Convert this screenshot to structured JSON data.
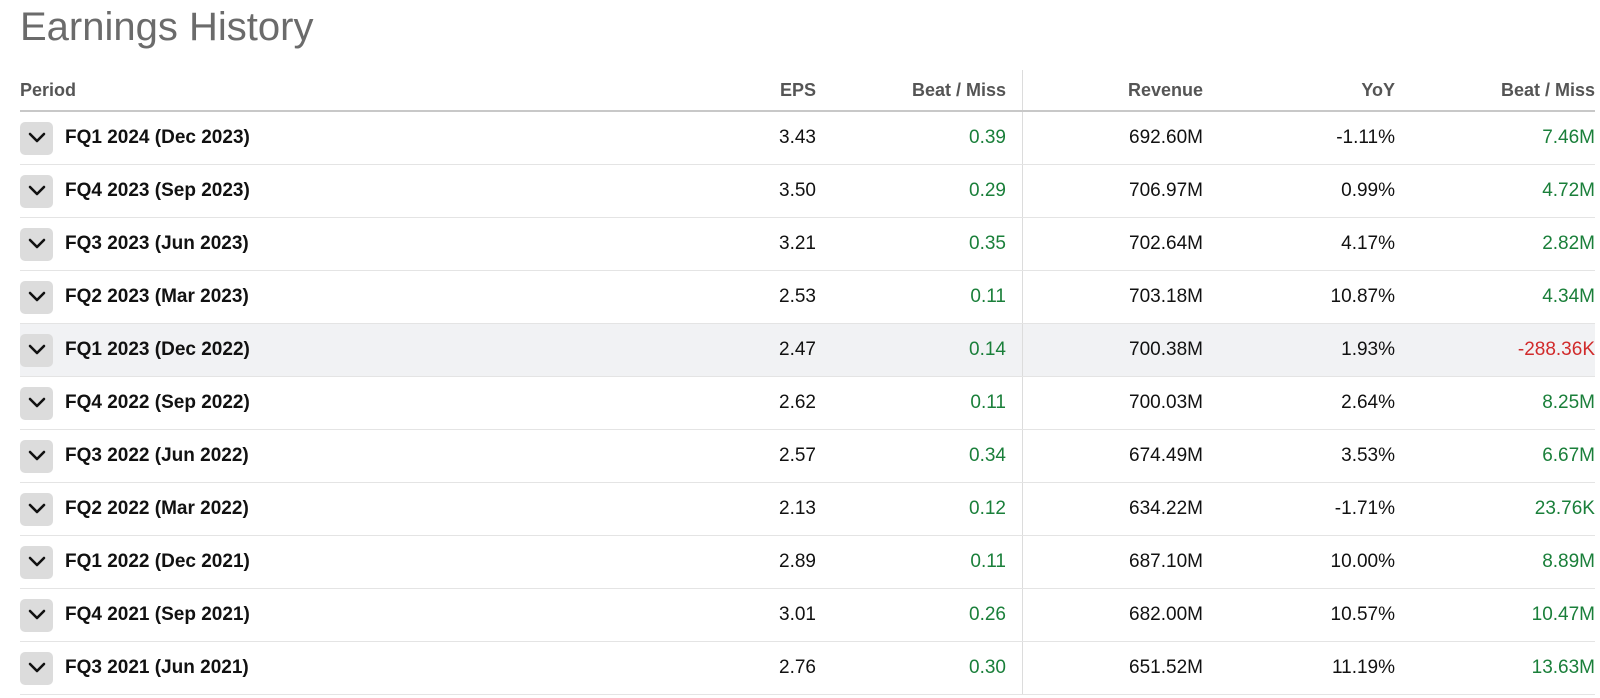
{
  "title": "Earnings History",
  "colors": {
    "positive": "#1a7f3a",
    "negative": "#d12b2b"
  },
  "columns": {
    "period": "Period",
    "eps": "EPS",
    "eps_beat_miss": "Beat / Miss",
    "revenue": "Revenue",
    "yoy": "YoY",
    "revenue_beat_miss": "Beat / Miss"
  },
  "rows": [
    {
      "period": "FQ1 2024 (Dec 2023)",
      "eps": "3.43",
      "eps_beat": "0.39",
      "revenue": "692.60M",
      "yoy": "-1.11%",
      "rev_beat": "7.46M"
    },
    {
      "period": "FQ4 2023 (Sep 2023)",
      "eps": "3.50",
      "eps_beat": "0.29",
      "revenue": "706.97M",
      "yoy": "0.99%",
      "rev_beat": "4.72M"
    },
    {
      "period": "FQ3 2023 (Jun 2023)",
      "eps": "3.21",
      "eps_beat": "0.35",
      "revenue": "702.64M",
      "yoy": "4.17%",
      "rev_beat": "2.82M"
    },
    {
      "period": "FQ2 2023 (Mar 2023)",
      "eps": "2.53",
      "eps_beat": "0.11",
      "revenue": "703.18M",
      "yoy": "10.87%",
      "rev_beat": "4.34M"
    },
    {
      "period": "FQ1 2023 (Dec 2022)",
      "eps": "2.47",
      "eps_beat": "0.14",
      "revenue": "700.38M",
      "yoy": "1.93%",
      "rev_beat": "-288.36K"
    },
    {
      "period": "FQ4 2022 (Sep 2022)",
      "eps": "2.62",
      "eps_beat": "0.11",
      "revenue": "700.03M",
      "yoy": "2.64%",
      "rev_beat": "8.25M"
    },
    {
      "period": "FQ3 2022 (Jun 2022)",
      "eps": "2.57",
      "eps_beat": "0.34",
      "revenue": "674.49M",
      "yoy": "3.53%",
      "rev_beat": "6.67M"
    },
    {
      "period": "FQ2 2022 (Mar 2022)",
      "eps": "2.13",
      "eps_beat": "0.12",
      "revenue": "634.22M",
      "yoy": "-1.71%",
      "rev_beat": "23.76K"
    },
    {
      "period": "FQ1 2022 (Dec 2021)",
      "eps": "2.89",
      "eps_beat": "0.11",
      "revenue": "687.10M",
      "yoy": "10.00%",
      "rev_beat": "8.89M"
    },
    {
      "period": "FQ4 2021 (Sep 2021)",
      "eps": "3.01",
      "eps_beat": "0.26",
      "revenue": "682.00M",
      "yoy": "10.57%",
      "rev_beat": "10.47M"
    },
    {
      "period": "FQ3 2021 (Jun 2021)",
      "eps": "2.76",
      "eps_beat": "0.30",
      "revenue": "651.52M",
      "yoy": "11.19%",
      "rev_beat": "13.63M"
    }
  ]
}
